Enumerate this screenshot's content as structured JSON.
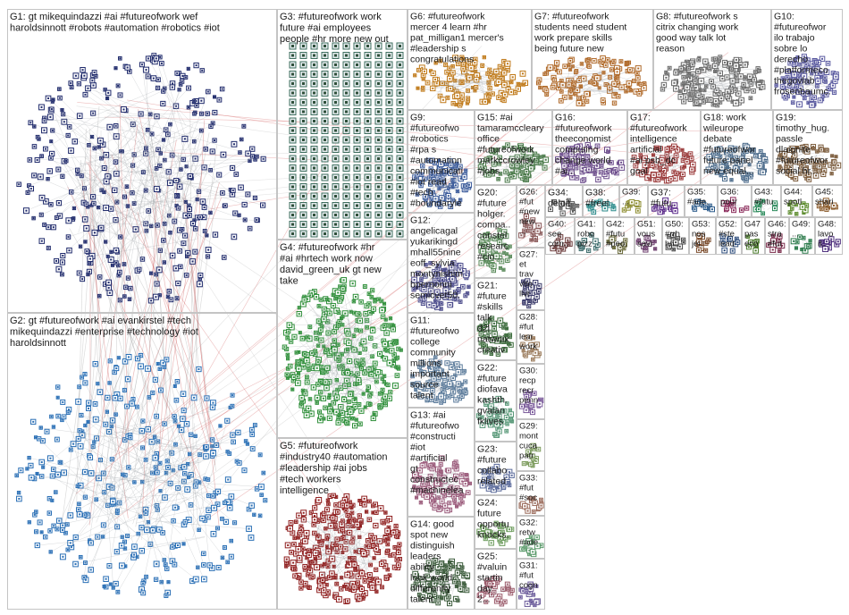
{
  "cells": [
    {
      "label": "G1: gt mikequindazzi #ai #futureofwork wef haroldsinnott #robots #automation #robotics #iot",
      "color": "#1f2a6b"
    },
    {
      "label": "G2: gt #futureofwork #ai evankirstel #tech mikequindazzi #enterprise #technology #iot haroldsinnott",
      "color": "#2a6fb5"
    },
    {
      "label": "G3: #futureofwork work future #ai employees people #hr more new out",
      "color": "#2f6b5a"
    },
    {
      "label": "G4: #futureofwork #hr #ai #hrtech work now david_green_uk gt new take",
      "color": "#2f8f3a"
    },
    {
      "label": "G5: #futureofwork #industry40 #automation #leadership #ai jobs #tech workers intelligence",
      "color": "#8f1f1f"
    },
    {
      "label": "G6: #futureofwork mercer 4 learn #hr pat_milligan1 mercer's #leadership s congratulations",
      "color": "#c07a1a"
    },
    {
      "label": "G7: #futureofwork students need student work prepare skills being future new",
      "color": "#b06a2a"
    },
    {
      "label": "G8: #futureofwork s citrix changing work good way talk lot reason",
      "color": "#6a6a6a"
    },
    {
      "label": "G10: #futureofwork ilo trabajo sobre lo derecho #platformeco... thegovlab frosenbaumc...",
      "color": "#5a5aa0"
    },
    {
      "label": "G9: #futureofwork #robotics #rpa s #automation communicati... #iot read #tech #boundaryle...",
      "color": "#3a5a9a"
    },
    {
      "label": "G15: #ai tamaramccleary office #futureofwork markccrowley #jobs reason...",
      "color": "#4a7a4a"
    },
    {
      "label": "G16: #futureofwork theeconomist computing change world #ai...",
      "color": "#6a4a8a"
    },
    {
      "label": "G17: #futureofwork intelligence artificial #ai psb_dc goal automation...",
      "color": "#9a3a3a"
    },
    {
      "label": "G18: work wileurope debate #futureofwork future panel new equal...",
      "color": "#4a6a8a"
    },
    {
      "label": "G19: timothy_hug... passle dlaignite #futureofwork social hr...",
      "color": "#7a5a3a"
    },
    {
      "label": "G12: angelicagall... yukarikingdo... mhall55nine eoff_sylvia montynishim... bpernonni semicvet50...",
      "color": "#4a4a8a"
    },
    {
      "label": "G20: #future... holger... compa... constell... research #cio...",
      "color": "#5a8a5a"
    },
    {
      "label": "G26: #futu... #new... new... ...",
      "color": "#8a5a5a"
    },
    {
      "label": "G34: deloitt...",
      "color": "#5a5a5a"
    },
    {
      "label": "G38: #freel...",
      "color": "#2a8a8a"
    },
    {
      "label": "G39: ...",
      "color": "#8a8a2a"
    },
    {
      "label": "G37: #futu...",
      "color": "#5a2a8a"
    },
    {
      "label": "G35: #ade... ...",
      "color": "#2a5a8a"
    },
    {
      "label": "G36: pour l...",
      "color": "#8a2a5a"
    },
    {
      "label": "G43: #futu...",
      "color": "#2a8a5a"
    },
    {
      "label": "G44: spotl...",
      "color": "#5a8a2a"
    },
    {
      "label": "G45: shari...",
      "color": "#8a5a2a"
    },
    {
      "label": "G21: #futureofwork #skillsc... talk d2l natwnix creativi...",
      "color": "#3a6a3a"
    },
    {
      "label": "G27: et travail vitolae livre...",
      "color": "#3a3a6a"
    },
    {
      "label": "G40: see com...",
      "color": "#6a3a3a"
    },
    {
      "label": "G41: robots pizz...",
      "color": "#3a6a6a"
    },
    {
      "label": "G42: #futu #peo...",
      "color": "#6a6a3a"
    },
    {
      "label": "G51: vous savi...",
      "color": "#6a3a6a"
    },
    {
      "label": "G50: #rrhh hu...",
      "color": "#4a4a4a"
    },
    {
      "label": "G53: nos jei...",
      "color": "#7a4a2a"
    },
    {
      "label": "G52: #ste... lead...",
      "color": "#2a4a7a"
    },
    {
      "label": "G47: pas... eco...",
      "color": "#4a7a2a"
    },
    {
      "label": "G46: stra... #fut...",
      "color": "#7a2a4a"
    },
    {
      "label": "G49: ...",
      "color": "#2a7a4a"
    },
    {
      "label": "G48: lavo... il...",
      "color": "#4a2a7a"
    },
    {
      "label": "G11: #futureofwork college community millions important source talent underinvest...",
      "color": "#5a7a9a"
    },
    {
      "label": "G28: #futu... learn work...",
      "color": "#9a7a5a"
    },
    {
      "label": "G22: #future... diofava... kashth... gvalan fklivest...",
      "color": "#5a9a7a"
    },
    {
      "label": "G30: recpr... recrei... penn...",
      "color": "#7a5a9a"
    },
    {
      "label": "G13: #ai #futureofwork #construction #iot #artificialintel... gt constructech... #machinelea...",
      "color": "#9a5a7a"
    },
    {
      "label": "G29: mont... cuca... patri...",
      "color": "#7a9a5a"
    },
    {
      "label": "G23: #futureofwork collabo... related alanlep...",
      "color": "#5a6a9a"
    },
    {
      "label": "G33: #futu... #soci...",
      "color": "#9a6a5a"
    },
    {
      "label": "G24: future opportu... knocks...",
      "color": "#6a9a5a"
    },
    {
      "label": "G32: retw... #ade...",
      "color": "#5a9a6a"
    },
    {
      "label": "G25: #valuin... starting day 2...",
      "color": "#9a5a6a"
    },
    {
      "label": "G31: #futu... cogni...",
      "color": "#6a5a9a"
    },
    {
      "label": "G14: good spot new distinguishes leaders ability look world differently talent",
      "color": "#3a5a3a"
    }
  ]
}
